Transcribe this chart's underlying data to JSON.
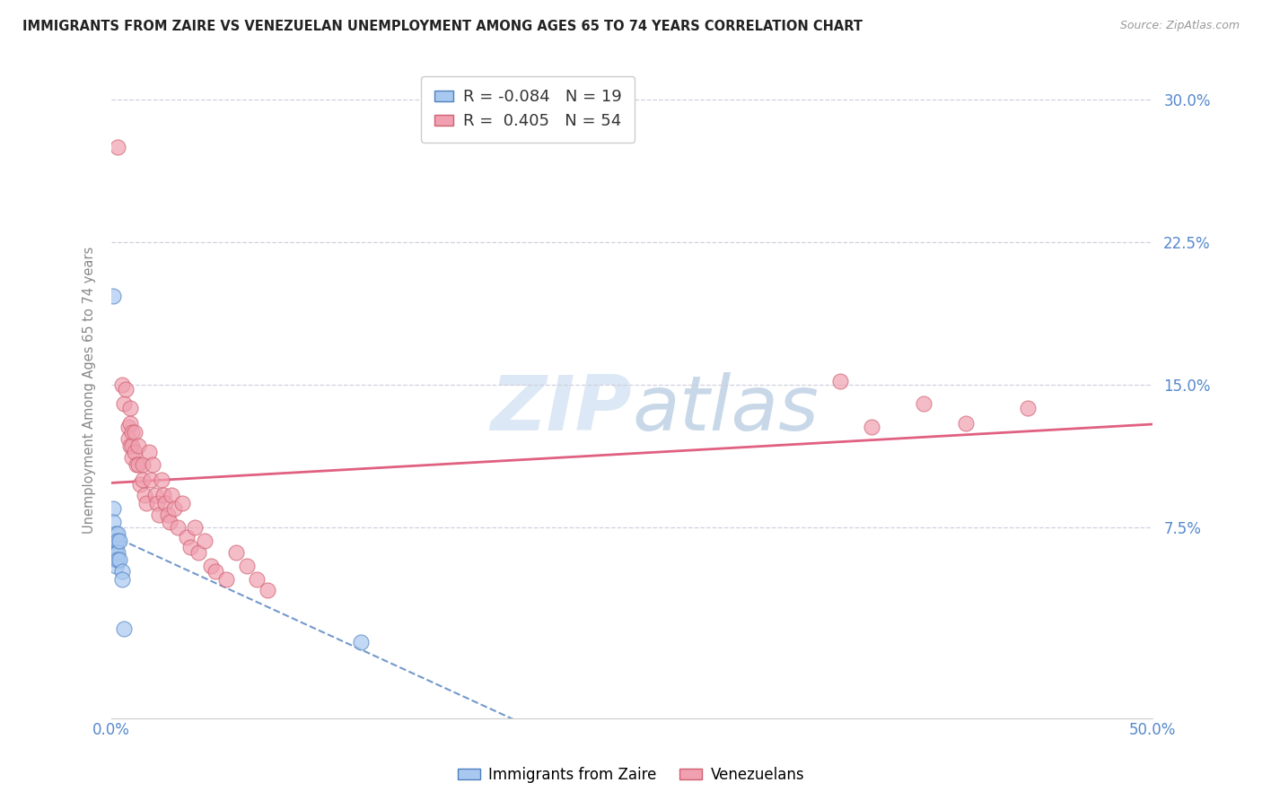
{
  "title": "IMMIGRANTS FROM ZAIRE VS VENEZUELAN UNEMPLOYMENT AMONG AGES 65 TO 74 YEARS CORRELATION CHART",
  "source": "Source: ZipAtlas.com",
  "ylabel": "Unemployment Among Ages 65 to 74 years",
  "xlim": [
    0.0,
    0.5
  ],
  "ylim": [
    -0.025,
    0.32
  ],
  "xticks": [
    0.0,
    0.1,
    0.2,
    0.3,
    0.4,
    0.5
  ],
  "xticklabels": [
    "0.0%",
    "",
    "",
    "",
    "",
    "50.0%"
  ],
  "yticks_right": [
    0.0,
    0.075,
    0.15,
    0.225,
    0.3
  ],
  "yticklabels_right": [
    "",
    "7.5%",
    "15.0%",
    "22.5%",
    "30.0%"
  ],
  "legend1_text": "R = -0.084   N = 19",
  "legend2_text": "R =  0.405   N = 54",
  "color_blue": "#a8c8f0",
  "color_pink": "#f0a0b0",
  "trend_blue": "#5080c0",
  "trend_pink": "#e0607080",
  "background": "#ffffff",
  "grid_color": "#d0d0e0",
  "zaire_points": [
    [
      0.001,
      0.197
    ],
    [
      0.001,
      0.085
    ],
    [
      0.001,
      0.078
    ],
    [
      0.002,
      0.072
    ],
    [
      0.002,
      0.068
    ],
    [
      0.002,
      0.065
    ],
    [
      0.002,
      0.062
    ],
    [
      0.002,
      0.058
    ],
    [
      0.002,
      0.055
    ],
    [
      0.003,
      0.072
    ],
    [
      0.003,
      0.068
    ],
    [
      0.003,
      0.062
    ],
    [
      0.003,
      0.058
    ],
    [
      0.004,
      0.068
    ],
    [
      0.004,
      0.058
    ],
    [
      0.005,
      0.052
    ],
    [
      0.005,
      0.048
    ],
    [
      0.006,
      0.022
    ],
    [
      0.12,
      0.015
    ]
  ],
  "venezuelan_points": [
    [
      0.003,
      0.275
    ],
    [
      0.005,
      0.15
    ],
    [
      0.006,
      0.14
    ],
    [
      0.007,
      0.148
    ],
    [
      0.008,
      0.128
    ],
    [
      0.008,
      0.122
    ],
    [
      0.009,
      0.138
    ],
    [
      0.009,
      0.13
    ],
    [
      0.009,
      0.118
    ],
    [
      0.01,
      0.125
    ],
    [
      0.01,
      0.118
    ],
    [
      0.01,
      0.112
    ],
    [
      0.011,
      0.125
    ],
    [
      0.011,
      0.115
    ],
    [
      0.012,
      0.108
    ],
    [
      0.013,
      0.118
    ],
    [
      0.013,
      0.108
    ],
    [
      0.014,
      0.098
    ],
    [
      0.015,
      0.108
    ],
    [
      0.015,
      0.1
    ],
    [
      0.016,
      0.092
    ],
    [
      0.017,
      0.088
    ],
    [
      0.018,
      0.115
    ],
    [
      0.019,
      0.1
    ],
    [
      0.02,
      0.108
    ],
    [
      0.021,
      0.092
    ],
    [
      0.022,
      0.088
    ],
    [
      0.023,
      0.082
    ],
    [
      0.024,
      0.1
    ],
    [
      0.025,
      0.092
    ],
    [
      0.026,
      0.088
    ],
    [
      0.027,
      0.082
    ],
    [
      0.028,
      0.078
    ],
    [
      0.029,
      0.092
    ],
    [
      0.03,
      0.085
    ],
    [
      0.032,
      0.075
    ],
    [
      0.034,
      0.088
    ],
    [
      0.036,
      0.07
    ],
    [
      0.038,
      0.065
    ],
    [
      0.04,
      0.075
    ],
    [
      0.042,
      0.062
    ],
    [
      0.045,
      0.068
    ],
    [
      0.048,
      0.055
    ],
    [
      0.05,
      0.052
    ],
    [
      0.055,
      0.048
    ],
    [
      0.06,
      0.062
    ],
    [
      0.065,
      0.055
    ],
    [
      0.07,
      0.048
    ],
    [
      0.075,
      0.042
    ],
    [
      0.35,
      0.152
    ],
    [
      0.365,
      0.128
    ],
    [
      0.39,
      0.14
    ],
    [
      0.41,
      0.13
    ],
    [
      0.44,
      0.138
    ]
  ]
}
